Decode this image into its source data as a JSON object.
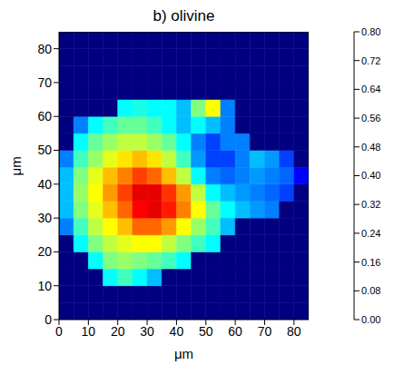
{
  "chart_data": {
    "type": "heatmap",
    "title": "b) olivine",
    "x_label": "μm",
    "y_label": "μm",
    "xlim": [
      0,
      85
    ],
    "ylim": [
      0,
      85
    ],
    "xticks": [
      0,
      10,
      20,
      30,
      40,
      50,
      60,
      70,
      80
    ],
    "yticks": [
      0,
      10,
      20,
      30,
      40,
      50,
      60,
      70,
      80
    ],
    "x": [
      2.5,
      7.5,
      12.5,
      17.5,
      22.5,
      27.5,
      32.5,
      37.5,
      42.5,
      47.5,
      52.5,
      57.5,
      62.5,
      67.5,
      72.5,
      77.5,
      82.5
    ],
    "y": [
      2.5,
      7.5,
      12.5,
      17.5,
      22.5,
      27.5,
      32.5,
      37.5,
      42.5,
      47.5,
      52.5,
      57.5,
      62.5,
      67.5,
      72.5,
      77.5,
      82.5
    ],
    "z": [
      [
        0,
        0,
        0,
        0,
        0,
        0,
        0,
        0,
        0,
        0,
        0,
        0,
        0,
        0,
        0,
        0,
        0
      ],
      [
        0,
        0,
        0,
        0,
        0,
        0,
        0,
        0,
        0,
        0,
        0,
        0,
        0,
        0,
        0,
        0,
        0
      ],
      [
        0,
        0,
        0,
        0.3,
        0.35,
        0.3,
        0.25,
        0,
        0,
        0,
        0,
        0,
        0,
        0,
        0,
        0,
        0
      ],
      [
        0,
        0,
        0.3,
        0.4,
        0.42,
        0.4,
        0.38,
        0.35,
        0.3,
        0,
        0,
        0,
        0,
        0,
        0,
        0,
        0
      ],
      [
        0,
        0.3,
        0.4,
        0.45,
        0.48,
        0.5,
        0.5,
        0.45,
        0.4,
        0.35,
        0.3,
        0,
        0,
        0,
        0,
        0,
        0
      ],
      [
        0.2,
        0.35,
        0.45,
        0.5,
        0.55,
        0.62,
        0.62,
        0.58,
        0.5,
        0.42,
        0.35,
        0.25,
        0,
        0,
        0,
        0,
        0
      ],
      [
        0.25,
        0.4,
        0.48,
        0.55,
        0.62,
        0.7,
        0.72,
        0.68,
        0.6,
        0.5,
        0.38,
        0.3,
        0.25,
        0.22,
        0.2,
        0,
        0
      ],
      [
        0.25,
        0.42,
        0.5,
        0.58,
        0.65,
        0.72,
        0.72,
        0.66,
        0.58,
        0.45,
        0.3,
        0.25,
        0.22,
        0.2,
        0.18,
        0.15,
        0
      ],
      [
        0.25,
        0.4,
        0.48,
        0.55,
        0.6,
        0.65,
        0.62,
        0.55,
        0.45,
        0.3,
        0.2,
        0.18,
        0.2,
        0.22,
        0.2,
        0.18,
        0.1
      ],
      [
        0.2,
        0.35,
        0.42,
        0.48,
        0.52,
        0.55,
        0.52,
        0.45,
        0.35,
        0.22,
        0.15,
        0.15,
        0.2,
        0.25,
        0.22,
        0.15,
        0
      ],
      [
        0,
        0.3,
        0.38,
        0.42,
        0.45,
        0.45,
        0.42,
        0.38,
        0.3,
        0.2,
        0.15,
        0.2,
        0.2,
        0,
        0,
        0,
        0
      ],
      [
        0,
        0.2,
        0.3,
        0.35,
        0.38,
        0.38,
        0.35,
        0.3,
        0.25,
        0.3,
        0.25,
        0.2,
        0,
        0,
        0,
        0,
        0
      ],
      [
        0,
        0,
        0,
        0,
        0.3,
        0.32,
        0.3,
        0.3,
        0.25,
        0.4,
        0.5,
        0.2,
        0,
        0,
        0,
        0,
        0
      ],
      [
        0,
        0,
        0,
        0,
        0,
        0,
        0,
        0,
        0,
        0,
        0,
        0,
        0,
        0,
        0,
        0,
        0
      ],
      [
        0,
        0,
        0,
        0,
        0,
        0,
        0,
        0,
        0,
        0,
        0,
        0,
        0,
        0,
        0,
        0,
        0
      ],
      [
        0,
        0,
        0,
        0,
        0,
        0,
        0,
        0,
        0,
        0,
        0,
        0,
        0,
        0,
        0,
        0,
        0
      ],
      [
        0,
        0,
        0,
        0,
        0,
        0,
        0,
        0,
        0,
        0,
        0,
        0,
        0,
        0,
        0,
        0,
        0
      ]
    ],
    "colorbar": {
      "range": [
        0,
        0.8
      ],
      "ticks": [
        {
          "value": 0,
          "label": "0.00"
        },
        {
          "value": 0.08,
          "label": "0.08"
        },
        {
          "value": 0.16,
          "label": "0.16"
        },
        {
          "value": 0.24,
          "label": "0.24"
        },
        {
          "value": 0.32,
          "label": "0.32"
        },
        {
          "value": 0.4,
          "label": "0.40"
        },
        {
          "value": 0.48,
          "label": "0.48"
        },
        {
          "value": 0.56,
          "label": "0.56"
        },
        {
          "value": 0.64,
          "label": "0.64"
        },
        {
          "value": 0.72,
          "label": "0.72"
        },
        {
          "value": 0.8,
          "label": "0.80"
        }
      ]
    }
  }
}
